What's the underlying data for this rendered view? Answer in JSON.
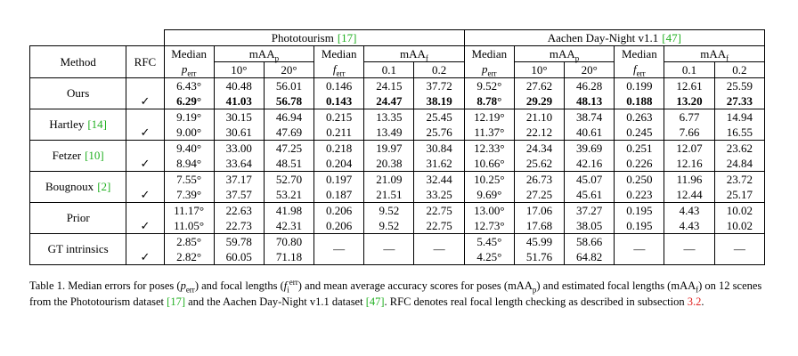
{
  "table": {
    "corner": "",
    "method_header": "Method",
    "rfc_header": "RFC",
    "groups": [
      {
        "title": {
          "t": "Phototourism",
          "cite": "[17]"
        },
        "row2": [
          "Median",
          {
            "t": "mAA",
            "sub": "p"
          },
          "Median",
          {
            "t": "mAA",
            "sub": "f"
          }
        ],
        "row3": [
          {
            "i": "p",
            "sub": "err"
          },
          "10°",
          "20°",
          {
            "i": "f",
            "sub": "err"
          },
          "0.1",
          "0.2"
        ]
      },
      {
        "title": {
          "t": "Aachen Day-Night v1.1",
          "cite": "[47]"
        },
        "row2": [
          "Median",
          {
            "t": "mAA",
            "sub": "p"
          },
          "Median",
          {
            "t": "mAA",
            "sub": "f"
          }
        ],
        "row3": [
          {
            "i": "p",
            "sub": "err"
          },
          "10°",
          "20°",
          {
            "i": "f",
            "sub": "err"
          },
          "0.1",
          "0.2"
        ]
      }
    ],
    "methods": [
      {
        "name": "Ours",
        "rfc": "✓",
        "bold_second_row": true,
        "rows": [
          [
            "6.43°",
            "40.48",
            "56.01",
            "0.146",
            "24.15",
            "37.72",
            "9.52°",
            "27.62",
            "46.28",
            "0.199",
            "12.61",
            "25.59"
          ],
          [
            "6.29°",
            "41.03",
            "56.78",
            "0.143",
            "24.47",
            "38.19",
            "8.78°",
            "29.29",
            "48.13",
            "0.188",
            "13.20",
            "27.33"
          ]
        ]
      },
      {
        "name": {
          "t": "Hartley",
          "cite": "[14]"
        },
        "rfc": "✓",
        "rows": [
          [
            "9.19°",
            "30.15",
            "46.94",
            "0.215",
            "13.35",
            "25.45",
            "12.19°",
            "21.10",
            "38.74",
            "0.263",
            "6.77",
            "14.94"
          ],
          [
            "9.00°",
            "30.61",
            "47.69",
            "0.211",
            "13.49",
            "25.76",
            "11.37°",
            "22.12",
            "40.61",
            "0.245",
            "7.66",
            "16.55"
          ]
        ]
      },
      {
        "name": {
          "t": "Fetzer",
          "cite": "[10]"
        },
        "rfc": "✓",
        "rows": [
          [
            "9.40°",
            "33.00",
            "47.25",
            "0.218",
            "19.97",
            "30.84",
            "12.33°",
            "24.34",
            "39.69",
            "0.251",
            "12.07",
            "23.62"
          ],
          [
            "8.94°",
            "33.64",
            "48.51",
            "0.204",
            "20.38",
            "31.62",
            "10.66°",
            "25.62",
            "42.16",
            "0.226",
            "12.16",
            "24.84"
          ]
        ]
      },
      {
        "name": {
          "t": "Bougnoux",
          "cite": "[2]"
        },
        "rfc": "✓",
        "rows": [
          [
            "7.55°",
            "37.17",
            "52.70",
            "0.197",
            "21.09",
            "32.44",
            "10.25°",
            "26.73",
            "45.07",
            "0.250",
            "11.96",
            "23.72"
          ],
          [
            "7.39°",
            "37.57",
            "53.21",
            "0.187",
            "21.51",
            "33.25",
            "9.69°",
            "27.25",
            "45.61",
            "0.223",
            "12.44",
            "25.17"
          ]
        ]
      },
      {
        "name": "Prior",
        "rfc": "✓",
        "rows": [
          [
            "11.17°",
            "22.63",
            "41.98",
            "0.206",
            "9.52",
            "22.75",
            "13.00°",
            "17.06",
            "37.27",
            "0.195",
            "4.43",
            "10.02"
          ],
          [
            "11.05°",
            "22.73",
            "42.31",
            "0.206",
            "9.52",
            "22.75",
            "12.73°",
            "17.68",
            "38.05",
            "0.195",
            "4.43",
            "10.02"
          ]
        ]
      },
      {
        "name": "GT intrinsics",
        "rfc": "✓",
        "rows": [
          [
            "2.85°",
            "59.78",
            "70.80",
            "—",
            "—",
            "—",
            "5.45°",
            "45.99",
            "58.66",
            "—",
            "—",
            "—"
          ],
          [
            "2.82°",
            "60.05",
            "71.18",
            null,
            null,
            null,
            "4.25°",
            "51.76",
            "64.82",
            null,
            null,
            null
          ]
        ]
      }
    ]
  },
  "caption": [
    "Table 1. Median errors for poses (",
    {
      "i": "p",
      "sub": "err"
    },
    ") and focal lengths (",
    {
      "i": "f",
      "sub": "i",
      "sup": "err"
    },
    ") and mean average accuracy scores for poses (",
    {
      "t": "mAA",
      "sub": "p"
    },
    ") and estimated focal lengths (",
    {
      "t": "mAA",
      "sub": "f"
    },
    ") on 12 scenes from the Phototourism dataset ",
    {
      "cite": "[17]"
    },
    " and the Aachen Day-Night v1.1 dataset ",
    {
      "cite": "[47]"
    },
    ". RFC denotes real focal length checking as described in subsection ",
    {
      "ref": "3.2"
    },
    "."
  ]
}
